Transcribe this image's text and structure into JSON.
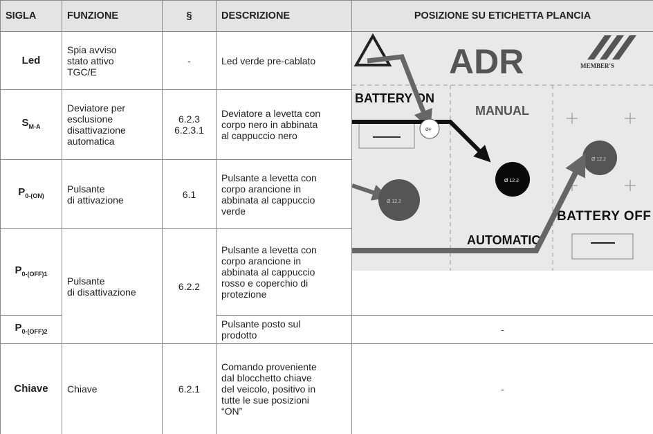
{
  "table": {
    "headers": [
      "SIGLA",
      "FUNZIONE",
      "§",
      "DESCRIZIONE",
      "POSIZIONE SU ETICHETTA PLANCIA"
    ],
    "rows": [
      {
        "sigla": {
          "main": "Led"
        },
        "funzione": [
          "Spia  avviso",
          "stato attivo",
          "TGC/E"
        ],
        "paragrafo": [
          "-"
        ],
        "descrizione": [
          "Led verde pre-cablato"
        ]
      },
      {
        "sigla": {
          "main": "S",
          "sub": "M-A"
        },
        "funzione": [
          "Deviatore per",
          "esclusione",
          "disattivazione",
          "automatica"
        ],
        "paragrafo": [
          "6.2.3",
          "6.2.3.1"
        ],
        "descrizione": [
          "Deviatore a levetta con",
          "corpo nero in abbinata",
          "al cappuccio nero"
        ]
      },
      {
        "sigla": {
          "main": "P",
          "sub": "0-(ON)"
        },
        "funzione": [
          "Pulsante",
          "di attivazione"
        ],
        "paragrafo": [
          "6.1"
        ],
        "descrizione": [
          "Pulsante a levetta con",
          "corpo arancione in",
          "abbinata al cappuccio",
          "verde"
        ]
      },
      {
        "sigla": {
          "main": "P",
          "sub": "0-(OFF)1"
        },
        "funzione": [
          "Pulsante",
          "di disattivazione"
        ],
        "paragrafo": [
          "6.2.2"
        ],
        "descrizione": [
          "Pulsante a levetta con",
          "corpo arancione in",
          "abbinata al cappuccio",
          "rosso e coperchio di",
          "protezione"
        ]
      },
      {
        "sigla": {
          "main": "P",
          "sub": "0-(OFF)2"
        },
        "descrizione": [
          "Pulsante posto sul",
          "prodotto"
        ],
        "posizione": "-"
      },
      {
        "sigla": {
          "main": "Chiave"
        },
        "funzione": [
          "Chiave"
        ],
        "paragrafo": [
          "6.2.1"
        ],
        "descrizione": [
          "Comando proveniente",
          "dal blocchetto chiave",
          "del veicolo, positivo in",
          "tutte le sue posizioni",
          "“ON”"
        ],
        "posizione": "-"
      }
    ]
  },
  "diagram": {
    "title": "ADR",
    "logo": "MEMBER'S",
    "battery_on": "BATTERY ON",
    "manual": "MANUAL",
    "automatic": "AUTOMATIC",
    "battery_off": "BATTERY OFF",
    "small_hole": "Ø4",
    "hole_labels": [
      "Ø 12.2",
      "Ø 12.2",
      "Ø 12.2"
    ]
  }
}
